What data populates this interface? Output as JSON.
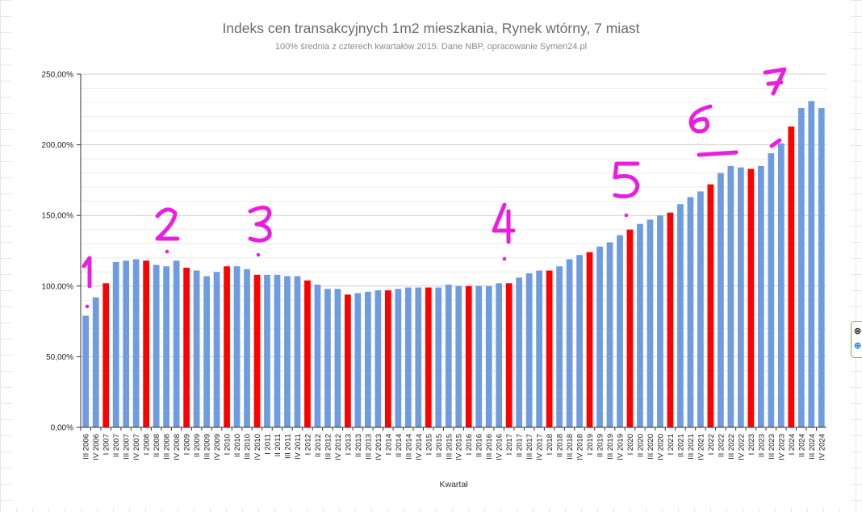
{
  "chart_data": {
    "type": "bar",
    "title": "Indeks cen transakcyjnych 1m2 mieszkania, Rynek wtórny, 7 miast",
    "subtitle": "100%  średnia z czterech kwartałów 2015. Dane NBP, opracowanie Symen24.pl",
    "xlabel": "Kwartał",
    "ylabel": "",
    "ylim": [
      0,
      250
    ],
    "y_ticks": [
      0,
      50,
      100,
      150,
      200,
      250
    ],
    "y_tick_labels": [
      "0,00%",
      "50,00%",
      "100,00%",
      "150,00%",
      "200,00%",
      "250,00%"
    ],
    "grid": true,
    "colors": {
      "default": "#6f9ce0",
      "highlight": "#ff0000"
    },
    "categories": [
      "III 2006",
      "IV 2006",
      "I 2007",
      "II 2007",
      "III 2007",
      "IV 2007",
      "I 2008",
      "II 2008",
      "III 2008",
      "IV 2008",
      "I 2009",
      "II 2009",
      "III 2009",
      "IV 2009",
      "I 2010",
      "II 2010",
      "III 2010",
      "IV 2010",
      "I 2011",
      "II 2011",
      "III 2011",
      "IV 2011",
      "I 2012",
      "II 2012",
      "III 2012",
      "IV 2012",
      "I 2013",
      "II 2013",
      "III 2013",
      "IV 2013",
      "I 2014",
      "II 2014",
      "III 2014",
      "IV 2014",
      "I 2015",
      "II 2015",
      "III 2015",
      "IV 2015",
      "I 2016",
      "II 2016",
      "III 2016",
      "IV 2016",
      "I 2017",
      "II 2017",
      "III 2017",
      "IV 2017",
      "I 2018",
      "II 2018",
      "III 2018",
      "IV 2018",
      "I 2019",
      "II 2019",
      "III 2019",
      "IV 2019",
      "I 2020",
      "II 2020",
      "III 2020",
      "IV 2020",
      "I 2021",
      "II 2021",
      "III 2021",
      "IV 2021",
      "I 2022",
      "II 2022",
      "III 2022",
      "IV 2022",
      "I 2023",
      "II 2023",
      "III 2023",
      "IV 2023",
      "I 2024",
      "II 2024",
      "III 2024",
      "IV 2024"
    ],
    "values": [
      79,
      92,
      102,
      117,
      118,
      119,
      118,
      115,
      114,
      118,
      113,
      111,
      107,
      110,
      114,
      114,
      112,
      108,
      108,
      108,
      107,
      107,
      104,
      101,
      98,
      98,
      94,
      95,
      96,
      97,
      97,
      98,
      99,
      99,
      99,
      99,
      101,
      100,
      100,
      100,
      100,
      102,
      102,
      106,
      109,
      111,
      111,
      114,
      119,
      122,
      124,
      128,
      131,
      136,
      140,
      144,
      147,
      150,
      152,
      158,
      163,
      167,
      172,
      180,
      185,
      184,
      183,
      185,
      194,
      201,
      213,
      226,
      231,
      226
    ],
    "highlight": [
      false,
      false,
      true,
      false,
      false,
      false,
      true,
      false,
      false,
      false,
      true,
      false,
      false,
      false,
      true,
      false,
      false,
      true,
      false,
      false,
      false,
      false,
      true,
      false,
      false,
      false,
      true,
      false,
      false,
      false,
      true,
      false,
      false,
      false,
      true,
      false,
      false,
      false,
      true,
      false,
      false,
      false,
      true,
      false,
      false,
      false,
      true,
      false,
      false,
      false,
      true,
      false,
      false,
      false,
      true,
      false,
      false,
      false,
      true,
      false,
      false,
      false,
      true,
      false,
      false,
      false,
      true,
      false,
      false,
      false,
      true,
      false,
      false,
      false
    ]
  },
  "annotations": {
    "color": "#e91ee0",
    "labels": [
      "1",
      "2",
      "3",
      "4",
      "5",
      "6",
      "7"
    ]
  }
}
